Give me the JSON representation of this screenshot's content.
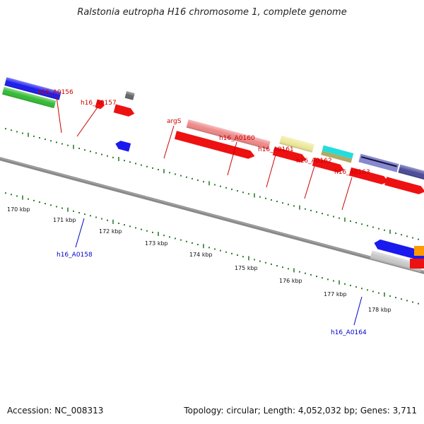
{
  "title": "Ralstonia eutropha H16 chromosome 1, complete genome",
  "accession": "Accession: NC_008313",
  "topology": "Topology: circular; Length: 4,052,032 bp; Genes: 3,711",
  "colors": {
    "backbone": "#777777",
    "tick_green": "#2e7d2e",
    "label_red": "#cc0000",
    "label_blue": "#0000cc",
    "feature_red": "#ee1111",
    "feature_blue": "#1a1aee",
    "feature_green": "#33bb33",
    "feature_pink": "#ee8888",
    "feature_yellow": "#eee899",
    "feature_cyan": "#22dddd",
    "feature_olive": "#b0aa66",
    "feature_navy": "#4a4a99",
    "feature_grey": "#c8c8c8",
    "feature_dark": "#666666",
    "feature_orange": "#ff9900"
  },
  "kbp_ticks": [
    "170 kbp",
    "171 kbp",
    "172 kbp",
    "173 kbp",
    "174 kbp",
    "175 kbp",
    "176 kbp",
    "177 kbp",
    "178 kbp"
  ],
  "gene_labels": {
    "h16_A0156": "h16_A0156",
    "h16_A0157": "h16_A0157",
    "argS": "argS",
    "h16_A0160": "h16_A0160",
    "h16_A0161": "h16_A0161",
    "h16_A0162": "h16_A0162",
    "h16_A0163": "h16_A0163",
    "h16_A0158": "h16_A0158",
    "h16_A0164": "h16_A0164"
  }
}
